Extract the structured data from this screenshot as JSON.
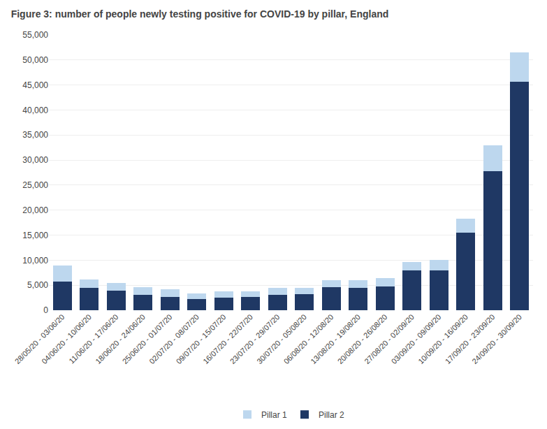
{
  "chart_data": {
    "type": "bar",
    "stacked": true,
    "title": "Figure 3: number of people newly testing positive for COVID-19 by pillar, England",
    "categories": [
      "28/05/20 - 03/06/20",
      "04/06/20 - 10/06/20",
      "11/06/20 - 17/06/20",
      "18/06/20 - 24/06/20",
      "25/06/20 - 01/07/20",
      "02/07/20 - 08/07/20",
      "09/07/20 - 15/07/20",
      "16/07/20 - 22/07/20",
      "23/07/20 - 29/07/20",
      "30/07/20 - 05/08/20",
      "06/08/20 - 12/08/20",
      "13/08/20 - 19/08/20",
      "20/08/20 - 26/08/20",
      "27/08/20 - 02/09/20",
      "03/09/20 - 09/09/20",
      "10/09/20 - 16/09/20",
      "17/09/20 - 23/09/20",
      "24/09/20 - 30/09/20"
    ],
    "series": [
      {
        "name": "Pillar 2",
        "color": "#1f3864",
        "values": [
          5700,
          4500,
          3900,
          3100,
          2700,
          2300,
          2500,
          2600,
          3100,
          3200,
          4600,
          4500,
          4800,
          7900,
          7900,
          15500,
          27761,
          45620
        ]
      },
      {
        "name": "Pillar 1",
        "color": "#bdd7ee",
        "values": [
          3200,
          1600,
          1600,
          1500,
          1500,
          1100,
          1200,
          1200,
          1300,
          1300,
          1400,
          1500,
          1600,
          1800,
          2100,
          2800,
          5171,
          5855
        ]
      }
    ],
    "ylim": [
      0,
      55000
    ],
    "yticks": [
      0,
      {
        "value": 5000,
        "label": "5,000"
      },
      {
        "value": 10000,
        "label": "10,000"
      },
      {
        "value": 15000,
        "label": "15,000"
      },
      {
        "value": 20000,
        "label": "20,000"
      },
      {
        "value": 25000,
        "label": "25,000"
      },
      {
        "value": 30000,
        "label": "30,000"
      },
      {
        "value": 35000,
        "label": "35,000"
      },
      {
        "value": 40000,
        "label": "40,000"
      },
      {
        "value": 45000,
        "label": "45,000"
      },
      {
        "value": 50000,
        "label": "50,000"
      },
      {
        "value": 55000,
        "label": "55,000"
      }
    ],
    "grid": true,
    "legend": "bottom"
  }
}
